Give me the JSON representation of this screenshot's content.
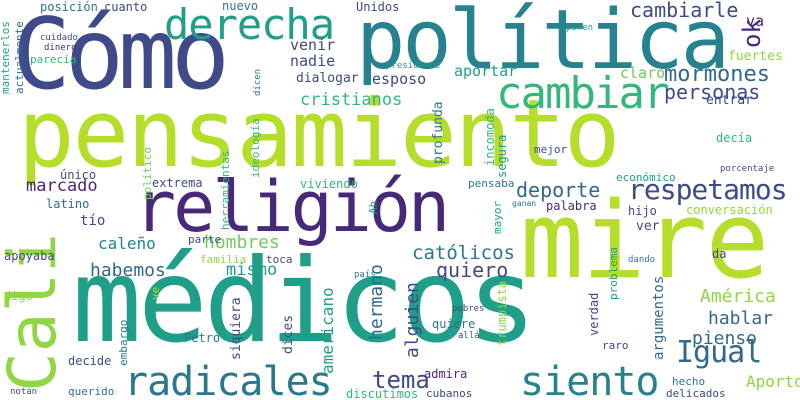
{
  "words": [
    {
      "key": "pensamiento",
      "text": "pensamiento",
      "color": "#b5de2b"
    },
    {
      "key": "medicos",
      "text": "médicos",
      "color": "#1f9e89"
    },
    {
      "key": "como",
      "text": "Cómo",
      "color": "#3e4a89"
    },
    {
      "key": "politica",
      "text": "política",
      "color": "#26828e"
    },
    {
      "key": "mire",
      "text": "mire",
      "color": "#b5de2b"
    },
    {
      "key": "religion",
      "text": "religión",
      "color": "#482878"
    },
    {
      "key": "cali",
      "text": "Cali",
      "color": "#90d743"
    },
    {
      "key": "derecha",
      "text": "derecha",
      "color": "#1f9e89"
    },
    {
      "key": "cambiar",
      "text": "cambiar",
      "color": "#35b779"
    },
    {
      "key": "radicales",
      "text": "radicales",
      "color": "#2a788e"
    },
    {
      "key": "siento",
      "text": "siento",
      "color": "#26828e"
    },
    {
      "key": "respetamos",
      "text": "respetamos",
      "color": "#3e4a89"
    },
    {
      "key": "igual",
      "text": "Igual",
      "color": "#31688e"
    },
    {
      "key": "cambiarle",
      "text": "cambiarle",
      "color": "#3e4a89"
    },
    {
      "key": "ok",
      "text": "ok",
      "color": "#482878"
    },
    {
      "key": "mormones",
      "text": "mormones",
      "color": "#31688e"
    },
    {
      "key": "personas",
      "text": "personas",
      "color": "#3e4a89"
    },
    {
      "key": "cristianos",
      "text": "cristianos",
      "color": "#35b779"
    },
    {
      "key": "catolicos",
      "text": "católicos",
      "color": "#2a788e"
    },
    {
      "key": "marcado",
      "text": "marcado",
      "color": "#482878"
    },
    {
      "key": "deporte",
      "text": "deporte",
      "color": "#31688e"
    },
    {
      "key": "hombres",
      "text": "hombres",
      "color": "#6ece58"
    },
    {
      "key": "habemos",
      "text": "habemos",
      "color": "#31688e"
    },
    {
      "key": "mismo",
      "text": "mismo",
      "color": "#1f9e89"
    },
    {
      "key": "quiero",
      "text": "quiero",
      "color": "#3e4a89"
    },
    {
      "key": "caleno",
      "text": "caleño",
      "color": "#26828e"
    },
    {
      "key": "tema",
      "text": "tema",
      "color": "#3e4a89"
    },
    {
      "key": "pienso",
      "text": "pienso",
      "color": "#31688e"
    },
    {
      "key": "hablar",
      "text": "hablar",
      "color": "#31688e"
    },
    {
      "key": "america",
      "text": "América",
      "color": "#90d743"
    },
    {
      "key": "aporto",
      "text": "Aporto",
      "color": "#90d743"
    },
    {
      "key": "venir",
      "text": "venir",
      "color": "#3e4a89"
    },
    {
      "key": "nadie",
      "text": "nadie",
      "color": "#3e4a89"
    },
    {
      "key": "esposo",
      "text": "esposo",
      "color": "#3e4a89"
    },
    {
      "key": "aportar",
      "text": "aportar",
      "color": "#1f9e89"
    },
    {
      "key": "claro",
      "text": "claro",
      "color": "#6ece58"
    },
    {
      "key": "dialogar",
      "text": "dialogar",
      "color": "#3e4a89"
    },
    {
      "key": "va",
      "text": "va",
      "color": "#482878"
    },
    {
      "key": "fuertes",
      "text": "fuertes",
      "color": "#90d743"
    },
    {
      "key": "entrar",
      "text": "entrar",
      "color": "#3e4a89"
    },
    {
      "key": "hermano",
      "text": "hermano",
      "color": "#31688e"
    },
    {
      "key": "alguien",
      "text": "alguien",
      "color": "#3e4a89"
    },
    {
      "key": "americano",
      "text": "americano",
      "color": "#1f9e89"
    },
    {
      "key": "argumentos",
      "text": "argumentos",
      "color": "#31688e"
    },
    {
      "key": "posicion",
      "text": "posición",
      "color": "#2a788e"
    },
    {
      "key": "cuanto",
      "text": "cuanto",
      "color": "#3e4a89"
    },
    {
      "key": "nuevo",
      "text": "nuevo",
      "color": "#2a788e"
    },
    {
      "key": "unidos",
      "text": "Unidos",
      "color": "#3e4a89"
    },
    {
      "key": "mantenerlos",
      "text": "mantenerlos",
      "color": "#1f9e89"
    },
    {
      "key": "actualmente",
      "text": "actualmente",
      "color": "#31688e"
    },
    {
      "key": "cuidado",
      "text": "cuidado",
      "color": "#3e4a89"
    },
    {
      "key": "dinero",
      "text": "dinero",
      "color": "#482878"
    },
    {
      "key": "parecia",
      "text": "parecía",
      "color": "#35b779"
    },
    {
      "key": "politico",
      "text": "político",
      "color": "#6ece58"
    },
    {
      "key": "herramientas",
      "text": "herramientas",
      "color": "#35b779"
    },
    {
      "key": "ideologia",
      "text": "ideología",
      "color": "#35b779"
    },
    {
      "key": "dicen",
      "text": "dicen",
      "color": "#2a788e"
    },
    {
      "key": "presidente",
      "text": "presidente",
      "color": "#1f9e89"
    },
    {
      "key": "profunda",
      "text": "profunda",
      "color": "#2a788e"
    },
    {
      "key": "incomoda",
      "text": "incomoda",
      "color": "#35b779"
    },
    {
      "key": "segura",
      "text": "segura",
      "color": "#1f9e89"
    },
    {
      "key": "mejor",
      "text": "mejor",
      "color": "#3e4a89"
    },
    {
      "key": "decia",
      "text": "decía",
      "color": "#35b779"
    },
    {
      "key": "porcentaje",
      "text": "porcentaje",
      "color": "#3e4a89"
    },
    {
      "key": "economico",
      "text": "económico",
      "color": "#1f9e89"
    },
    {
      "key": "pensaba",
      "text": "pensaba",
      "color": "#2a788e"
    },
    {
      "key": "ganan",
      "text": "ganan",
      "color": "#2a788e"
    },
    {
      "key": "conversacion",
      "text": "conversación",
      "color": "#90d743"
    },
    {
      "key": "hijo",
      "text": "hijo",
      "color": "#3e4a89"
    },
    {
      "key": "unico",
      "text": "único",
      "color": "#3e4a89"
    },
    {
      "key": "extrema",
      "text": "extrema",
      "color": "#3e4a89"
    },
    {
      "key": "viviendo",
      "text": "viviendo",
      "color": "#35b779"
    },
    {
      "key": "latino",
      "text": "latino",
      "color": "#31688e"
    },
    {
      "key": "tio",
      "text": "tío",
      "color": "#3e4a89"
    },
    {
      "key": "ah",
      "text": "Ah",
      "color": "#1f9e89"
    },
    {
      "key": "mayor",
      "text": "mayor",
      "color": "#1f9e89"
    },
    {
      "key": "palabra",
      "text": "palabra",
      "color": "#482878"
    },
    {
      "key": "ver",
      "text": "ver",
      "color": "#3e4a89"
    },
    {
      "key": "parte",
      "text": "parte",
      "color": "#3e4a89"
    },
    {
      "key": "apoyaba",
      "text": "apoyaba",
      "color": "#3e4a89"
    },
    {
      "key": "familia",
      "text": "familia",
      "color": "#90d743"
    },
    {
      "key": "toca",
      "text": "toca",
      "color": "#3e4a89"
    },
    {
      "key": "pais",
      "text": "país",
      "color": "#2a788e"
    },
    {
      "key": "problema",
      "text": "problema",
      "color": "#1f9e89"
    },
    {
      "key": "dando",
      "text": "dando",
      "color": "#2a788e"
    },
    {
      "key": "da",
      "text": "da",
      "color": "#3e4a89"
    },
    {
      "key": "digo",
      "text": "digo",
      "color": "#90d743"
    },
    {
      "key": "ve",
      "text": "ve",
      "color": "#b5de2b"
    },
    {
      "key": "siquiera",
      "text": "siquiera",
      "color": "#3e4a89"
    },
    {
      "key": "dices",
      "text": "dices",
      "color": "#3e4a89"
    },
    {
      "key": "trumpista",
      "text": "trumpista",
      "color": "#90d743"
    },
    {
      "key": "verdad",
      "text": "verdad",
      "color": "#3e4a89"
    },
    {
      "key": "embargo",
      "text": "embargo",
      "color": "#2a788e"
    },
    {
      "key": "petro",
      "text": "Petro",
      "color": "#2a788e"
    },
    {
      "key": "quiere",
      "text": "quiere",
      "color": "#2a788e"
    },
    {
      "key": "pobres",
      "text": "pobres",
      "color": "#3e4a89"
    },
    {
      "key": "alla",
      "text": "allá",
      "color": "#3e4a89"
    },
    {
      "key": "raro",
      "text": "raro",
      "color": "#3e4a89"
    },
    {
      "key": "decide",
      "text": "decide",
      "color": "#3e4a89"
    },
    {
      "key": "admira",
      "text": "admira",
      "color": "#482878"
    },
    {
      "key": "querido",
      "text": "querido",
      "color": "#2a788e"
    },
    {
      "key": "hecho",
      "text": "hecho",
      "color": "#2a788e"
    },
    {
      "key": "notan",
      "text": "notan",
      "color": "#3e4a89"
    },
    {
      "key": "discutimos",
      "text": "discutimos",
      "color": "#35b779"
    },
    {
      "key": "cubanos",
      "text": "cubanos",
      "color": "#3e4a89"
    },
    {
      "key": "delicados",
      "text": "delicados",
      "color": "#3e4a89"
    },
    {
      "key": "ponen",
      "text": "ponen",
      "color": "#1f9e89"
    }
  ]
}
